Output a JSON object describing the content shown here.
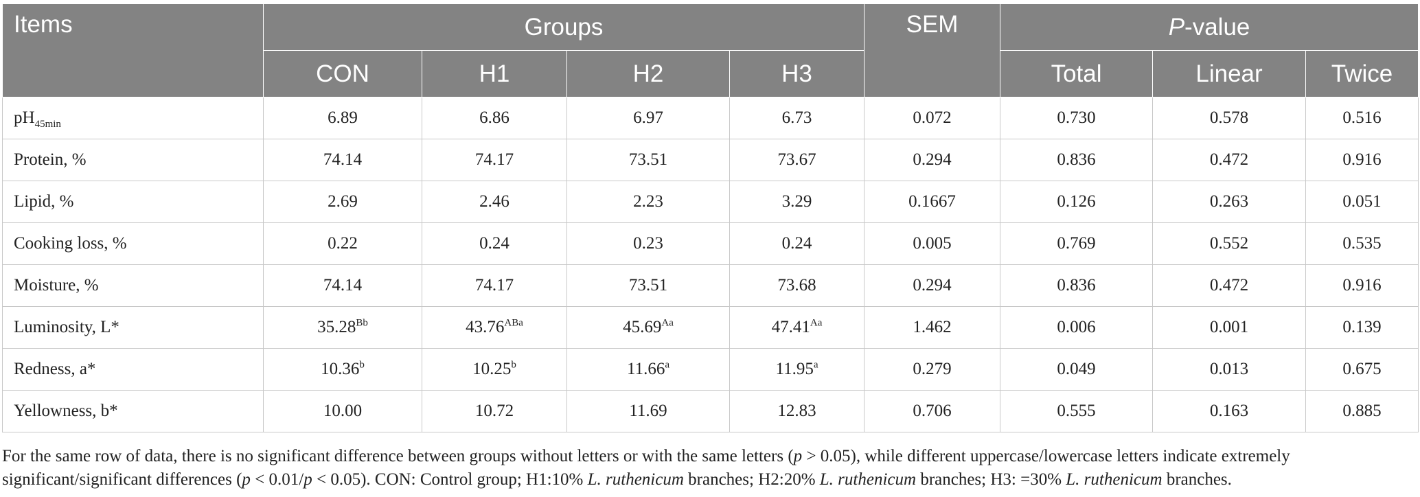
{
  "header": {
    "items": "Items",
    "groups": "Groups",
    "sem": "SEM",
    "pvalue_italic": "P",
    "pvalue_rest": "-value",
    "subcols": [
      "CON",
      "H1",
      "H2",
      "H3",
      "Total",
      "Linear",
      "Twice"
    ]
  },
  "rows": [
    {
      "label": "pH",
      "label_sub": "45min",
      "cells": [
        {
          "v": "6.89",
          "s": ""
        },
        {
          "v": "6.86",
          "s": ""
        },
        {
          "v": "6.97",
          "s": ""
        },
        {
          "v": "6.73",
          "s": ""
        },
        {
          "v": "0.072",
          "s": ""
        },
        {
          "v": "0.730",
          "s": ""
        },
        {
          "v": "0.578",
          "s": ""
        },
        {
          "v": "0.516",
          "s": ""
        }
      ]
    },
    {
      "label": "Protein, %",
      "label_sub": "",
      "cells": [
        {
          "v": "74.14",
          "s": ""
        },
        {
          "v": "74.17",
          "s": ""
        },
        {
          "v": "73.51",
          "s": ""
        },
        {
          "v": "73.67",
          "s": ""
        },
        {
          "v": "0.294",
          "s": ""
        },
        {
          "v": "0.836",
          "s": ""
        },
        {
          "v": "0.472",
          "s": ""
        },
        {
          "v": "0.916",
          "s": ""
        }
      ]
    },
    {
      "label": "Lipid, %",
      "label_sub": "",
      "cells": [
        {
          "v": "2.69",
          "s": ""
        },
        {
          "v": "2.46",
          "s": ""
        },
        {
          "v": "2.23",
          "s": ""
        },
        {
          "v": "3.29",
          "s": ""
        },
        {
          "v": "0.1667",
          "s": ""
        },
        {
          "v": "0.126",
          "s": ""
        },
        {
          "v": "0.263",
          "s": ""
        },
        {
          "v": "0.051",
          "s": ""
        }
      ]
    },
    {
      "label": "Cooking loss, %",
      "label_sub": "",
      "cells": [
        {
          "v": "0.22",
          "s": ""
        },
        {
          "v": "0.24",
          "s": ""
        },
        {
          "v": "0.23",
          "s": ""
        },
        {
          "v": "0.24",
          "s": ""
        },
        {
          "v": "0.005",
          "s": ""
        },
        {
          "v": "0.769",
          "s": ""
        },
        {
          "v": "0.552",
          "s": ""
        },
        {
          "v": "0.535",
          "s": ""
        }
      ]
    },
    {
      "label": "Moisture, %",
      "label_sub": "",
      "cells": [
        {
          "v": "74.14",
          "s": ""
        },
        {
          "v": "74.17",
          "s": ""
        },
        {
          "v": "73.51",
          "s": ""
        },
        {
          "v": "73.68",
          "s": ""
        },
        {
          "v": "0.294",
          "s": ""
        },
        {
          "v": "0.836",
          "s": ""
        },
        {
          "v": "0.472",
          "s": ""
        },
        {
          "v": "0.916",
          "s": ""
        }
      ]
    },
    {
      "label": "Luminosity, L*",
      "label_sub": "",
      "cells": [
        {
          "v": "35.28",
          "s": "Bb"
        },
        {
          "v": "43.76",
          "s": "ABa"
        },
        {
          "v": "45.69",
          "s": "Aa"
        },
        {
          "v": "47.41",
          "s": "Aa"
        },
        {
          "v": "1.462",
          "s": ""
        },
        {
          "v": "0.006",
          "s": ""
        },
        {
          "v": "0.001",
          "s": ""
        },
        {
          "v": "0.139",
          "s": ""
        }
      ]
    },
    {
      "label": "Redness, a*",
      "label_sub": "",
      "cells": [
        {
          "v": "10.36",
          "s": "b"
        },
        {
          "v": "10.25",
          "s": "b"
        },
        {
          "v": "11.66",
          "s": "a"
        },
        {
          "v": "11.95",
          "s": "a"
        },
        {
          "v": "0.279",
          "s": ""
        },
        {
          "v": "0.049",
          "s": ""
        },
        {
          "v": "0.013",
          "s": ""
        },
        {
          "v": "0.675",
          "s": ""
        }
      ]
    },
    {
      "label": "Yellowness, b*",
      "label_sub": "",
      "cells": [
        {
          "v": "10.00",
          "s": ""
        },
        {
          "v": "10.72",
          "s": ""
        },
        {
          "v": "11.69",
          "s": ""
        },
        {
          "v": "12.83",
          "s": ""
        },
        {
          "v": "0.706",
          "s": ""
        },
        {
          "v": "0.555",
          "s": ""
        },
        {
          "v": "0.163",
          "s": ""
        },
        {
          "v": "0.885",
          "s": ""
        }
      ]
    }
  ],
  "footnote": [
    {
      "t": "For the same row of data, there is no significant difference between groups without letters or with the same letters (",
      "i": false
    },
    {
      "t": "p",
      "i": true
    },
    {
      "t": " > 0.05), while different uppercase/lowercase letters indicate extremely significant/significant differences (",
      "i": false
    },
    {
      "t": "p",
      "i": true
    },
    {
      "t": " < 0.01/",
      "i": false
    },
    {
      "t": "p",
      "i": true
    },
    {
      "t": " < 0.05). CON: Control group; H1:10% ",
      "i": false
    },
    {
      "t": "L. ruthenicum",
      "i": true
    },
    {
      "t": " branches; H2:20% ",
      "i": false
    },
    {
      "t": "L. ruthenicum",
      "i": true
    },
    {
      "t": " branches; H3: =30% ",
      "i": false
    },
    {
      "t": "L. ruthenicum",
      "i": true
    },
    {
      "t": " branches.",
      "i": false
    }
  ]
}
